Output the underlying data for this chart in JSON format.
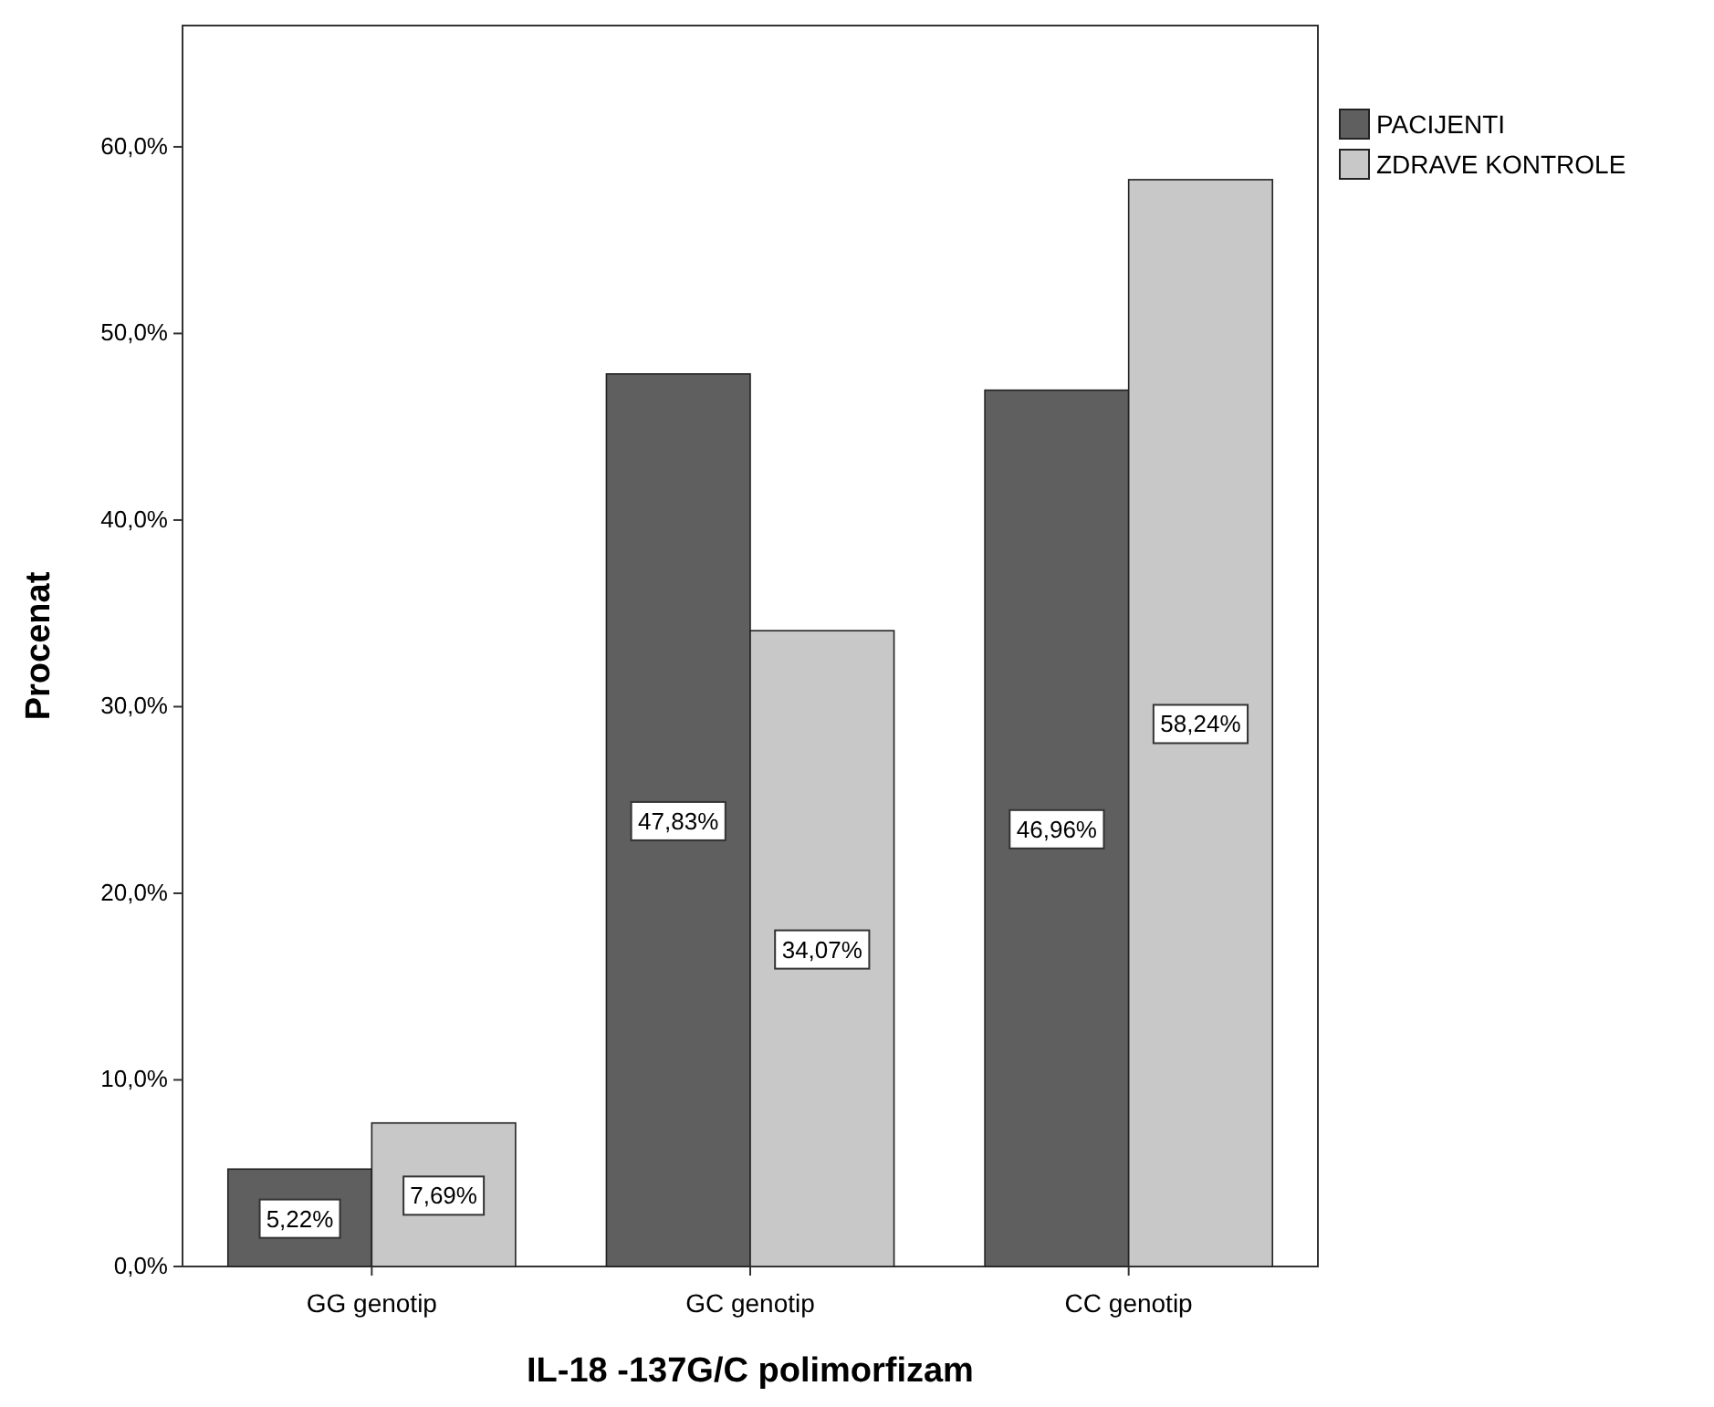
{
  "chart_data": {
    "type": "bar",
    "xlabel": "IL-18 -137G/C polimorfizam",
    "ylabel": "Procenat",
    "categories": [
      "GG genotip",
      "GC genotip",
      "CC genotip"
    ],
    "series": [
      {
        "name": "PACIJENTI",
        "color": "#5f5f5f",
        "values": [
          5.22,
          47.83,
          46.96
        ],
        "value_labels": [
          "5,22%",
          "47,83%",
          "46,96%"
        ]
      },
      {
        "name": "ZDRAVE KONTROLE",
        "color": "#c8c8c8",
        "values": [
          7.69,
          34.07,
          58.24
        ],
        "value_labels": [
          "7,69%",
          "34,07%",
          "58,24%"
        ]
      }
    ],
    "ylim": [
      0,
      66.5
    ],
    "yticks": [
      {
        "value": 0,
        "label": "0,0%"
      },
      {
        "value": 10,
        "label": "10,0%"
      },
      {
        "value": 20,
        "label": "20,0%"
      },
      {
        "value": 30,
        "label": "30,0%"
      },
      {
        "value": 40,
        "label": "40,0%"
      },
      {
        "value": 50,
        "label": "50,0%"
      },
      {
        "value": 60,
        "label": "60,0%"
      }
    ],
    "grid": false,
    "legend": "top right"
  }
}
